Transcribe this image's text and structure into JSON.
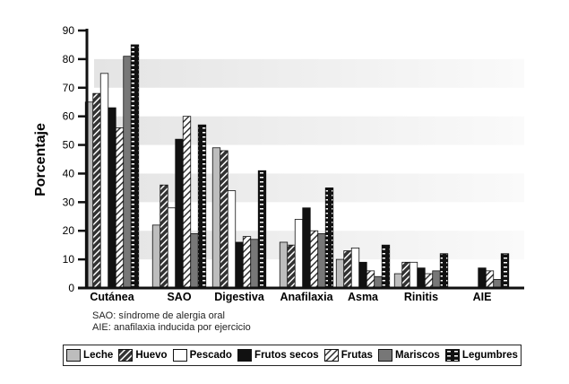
{
  "chart_data": {
    "type": "bar",
    "ylabel": "Porcentaje",
    "xlabel": "",
    "ylim": [
      0,
      90
    ],
    "yticks": [
      0,
      10,
      20,
      30,
      40,
      50,
      60,
      70,
      80,
      90
    ],
    "categories": [
      "Cutánea",
      "SAO",
      "Digestiva",
      "Anafilaxia",
      "Asma",
      "Rinitis",
      "AIE"
    ],
    "series": [
      {
        "name": "Leche",
        "values": [
          65,
          22,
          49,
          16,
          10,
          5,
          0
        ],
        "fill": "#bdbdbd",
        "pattern": "solid"
      },
      {
        "name": "Huevo",
        "values": [
          68,
          36,
          48,
          15,
          13,
          9,
          0
        ],
        "fill": "#333333",
        "pattern": "hatch-dark"
      },
      {
        "name": "Pescado",
        "values": [
          75,
          28,
          34,
          24,
          14,
          9,
          0
        ],
        "fill": "#ffffff",
        "pattern": "solid"
      },
      {
        "name": "Frutos secos",
        "values": [
          63,
          52,
          16,
          28,
          9,
          7,
          7
        ],
        "fill": "#111111",
        "pattern": "solid"
      },
      {
        "name": "Frutas",
        "values": [
          56,
          60,
          18,
          20,
          6,
          5,
          6
        ],
        "fill": "#ffffff",
        "pattern": "hatch-light"
      },
      {
        "name": "Mariscos",
        "values": [
          81,
          19,
          17,
          19,
          4,
          6,
          3
        ],
        "fill": "#777777",
        "pattern": "solid"
      },
      {
        "name": "Legumbres",
        "values": [
          85,
          57,
          41,
          35,
          15,
          12,
          12
        ],
        "fill": "#111111",
        "pattern": "dashes"
      }
    ],
    "legend": "bottom",
    "grid": false,
    "notes": [
      "SAO: síndrome de alergia oral",
      "AIE: anafilaxia inducida por ejercicio"
    ]
  }
}
